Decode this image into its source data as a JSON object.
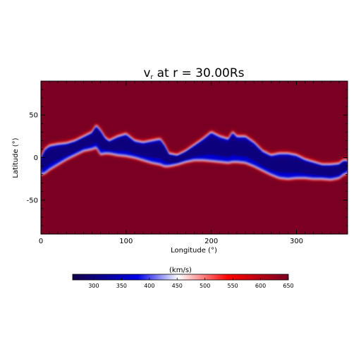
{
  "chart_data": {
    "type": "heatmap",
    "title": "v",
    "title_subscript": "r",
    "title_suffix": " at r = 30.00Rs",
    "xlabel": "Longitude (°)",
    "ylabel": "Latitude (°)",
    "xlim": [
      0,
      360
    ],
    "ylim": [
      -90,
      90
    ],
    "x_ticks": [
      0,
      100,
      200,
      300
    ],
    "y_ticks": [
      50,
      0,
      -50
    ],
    "grid": false,
    "colorbar": {
      "label": "(km/s)",
      "range": [
        262,
        650
      ],
      "ticks": [
        300,
        350,
        400,
        450,
        500,
        550,
        600,
        650
      ],
      "colors": [
        "#140048",
        "#0000e6",
        "#ffffff",
        "#ff0000",
        "#7a0023"
      ],
      "stops": [
        0,
        0.3,
        0.49,
        0.72,
        1
      ]
    },
    "background_value": 650,
    "slow_band": {
      "longitude": [
        0,
        5,
        10,
        20,
        30,
        40,
        50,
        60,
        65,
        70,
        75,
        80,
        90,
        100,
        110,
        120,
        130,
        140,
        145,
        150,
        160,
        170,
        180,
        190,
        200,
        210,
        220,
        225,
        230,
        240,
        250,
        260,
        270,
        280,
        290,
        300,
        310,
        320,
        330,
        340,
        350,
        355,
        360
      ],
      "north_lat": [
        0,
        10,
        14,
        16,
        17,
        20,
        25,
        30,
        38,
        32,
        24,
        20,
        25,
        28,
        20,
        18,
        20,
        22,
        15,
        5,
        3,
        8,
        15,
        22,
        30,
        25,
        22,
        30,
        25,
        25,
        18,
        8,
        3,
        5,
        5,
        3,
        -2,
        -5,
        -8,
        -8,
        -7,
        -3,
        -3
      ],
      "south_lat": [
        -20,
        -18,
        -14,
        -8,
        -2,
        3,
        8,
        10,
        12,
        4,
        5,
        5,
        3,
        2,
        0,
        -3,
        -6,
        -8,
        -10,
        -10,
        -8,
        -5,
        -3,
        -3,
        -4,
        -5,
        -6,
        -5,
        -5,
        -6,
        -10,
        -15,
        -20,
        -24,
        -25,
        -24,
        -24,
        -25,
        -25,
        -26,
        -24,
        -20,
        -18
      ]
    }
  }
}
